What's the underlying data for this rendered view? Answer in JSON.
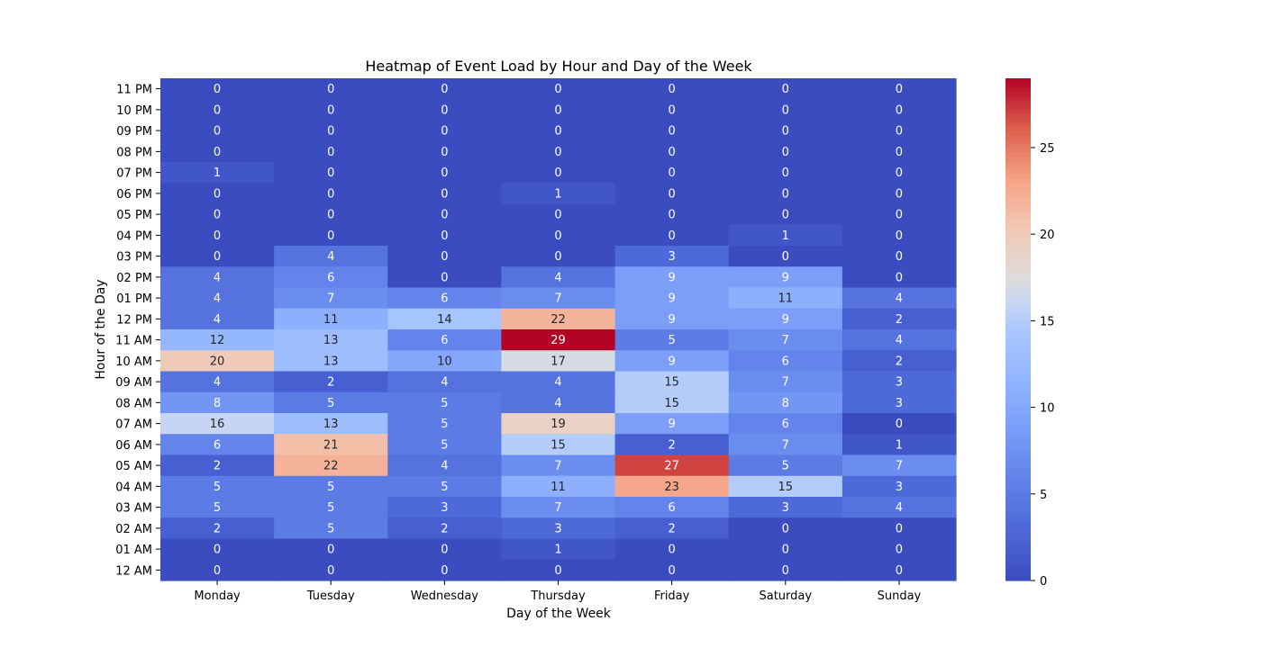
{
  "chart_data": {
    "type": "heatmap",
    "title": "Heatmap of Event Load by Hour and Day of the Week",
    "xlabel": "Day of the Week",
    "ylabel": "Hour of the Day",
    "x_categories": [
      "Monday",
      "Tuesday",
      "Wednesday",
      "Thursday",
      "Friday",
      "Saturday",
      "Sunday"
    ],
    "y_categories": [
      "11 PM",
      "10 PM",
      "09 PM",
      "08 PM",
      "07 PM",
      "06 PM",
      "05 PM",
      "04 PM",
      "03 PM",
      "02 PM",
      "01 PM",
      "12 PM",
      "11 AM",
      "10 AM",
      "09 AM",
      "08 AM",
      "07 AM",
      "06 AM",
      "05 AM",
      "04 AM",
      "03 AM",
      "02 AM",
      "01 AM",
      "12 AM"
    ],
    "values": [
      [
        0,
        0,
        0,
        0,
        0,
        0,
        0
      ],
      [
        0,
        0,
        0,
        0,
        0,
        0,
        0
      ],
      [
        0,
        0,
        0,
        0,
        0,
        0,
        0
      ],
      [
        0,
        0,
        0,
        0,
        0,
        0,
        0
      ],
      [
        1,
        0,
        0,
        0,
        0,
        0,
        0
      ],
      [
        0,
        0,
        0,
        1,
        0,
        0,
        0
      ],
      [
        0,
        0,
        0,
        0,
        0,
        0,
        0
      ],
      [
        0,
        0,
        0,
        0,
        0,
        1,
        0
      ],
      [
        0,
        4,
        0,
        0,
        3,
        0,
        0
      ],
      [
        4,
        6,
        0,
        4,
        9,
        9,
        0
      ],
      [
        4,
        7,
        6,
        7,
        9,
        11,
        4
      ],
      [
        4,
        11,
        14,
        22,
        9,
        9,
        2
      ],
      [
        12,
        13,
        6,
        29,
        5,
        7,
        4
      ],
      [
        20,
        13,
        10,
        17,
        9,
        6,
        2
      ],
      [
        4,
        2,
        4,
        4,
        15,
        7,
        3
      ],
      [
        8,
        5,
        5,
        4,
        15,
        8,
        3
      ],
      [
        16,
        13,
        5,
        19,
        9,
        6,
        0
      ],
      [
        6,
        21,
        5,
        15,
        2,
        7,
        1
      ],
      [
        2,
        22,
        4,
        7,
        27,
        5,
        7
      ],
      [
        5,
        5,
        5,
        11,
        23,
        15,
        3
      ],
      [
        5,
        5,
        3,
        7,
        6,
        3,
        4
      ],
      [
        2,
        5,
        2,
        3,
        2,
        0,
        0
      ],
      [
        0,
        0,
        0,
        1,
        0,
        0,
        0
      ],
      [
        0,
        0,
        0,
        0,
        0,
        0,
        0
      ]
    ],
    "colormap": "coolwarm",
    "color_low": "#3b4cc0",
    "color_high": "#b40426",
    "vmin": 0,
    "vmax": 29,
    "colorbar_ticks": [
      0,
      5,
      10,
      15,
      20,
      25
    ],
    "annotations": true
  }
}
